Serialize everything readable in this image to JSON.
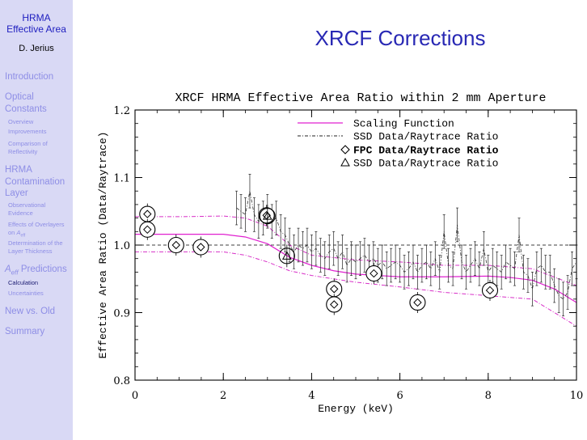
{
  "sidebar": {
    "title_line1": "HRMA",
    "title_line2": "Effective Area",
    "author": "D. Jerius",
    "sections": [
      {
        "label": "Introduction"
      },
      {
        "label": "Optical Constants",
        "subs": [
          "Overview",
          "Improvements",
          "Comparison of Reflectivity"
        ]
      },
      {
        "label": "HRMA Contamination Layer",
        "subs": [
          "Observational Evidence",
          "Effects of Overlayers on A_eff",
          "Determination of the Layer Thickness"
        ]
      },
      {
        "label": "A_eff Predictions",
        "subs": [
          "Calculation",
          "Uncertainties"
        ]
      },
      {
        "label": "New vs. Old"
      },
      {
        "label": "Summary"
      }
    ]
  },
  "slide": {
    "title": "XRCF Corrections"
  },
  "chart_data": {
    "type": "line",
    "title": "XRCF HRMA Effective Area Ratio within 2 mm Aperture",
    "xlabel": "Energy (keV)",
    "ylabel": "Effective Area Ratio (Data/Raytrace)",
    "xlim": [
      0,
      10
    ],
    "ylim": [
      0.8,
      1.2
    ],
    "xticks": [
      0,
      2,
      4,
      6,
      8,
      10
    ],
    "yticks": [
      0.8,
      0.9,
      1.0,
      1.1,
      1.2
    ],
    "xtick_labels": [
      "0",
      "2",
      "4",
      "6",
      "8",
      "10"
    ],
    "ytick_labels": [
      "0.8",
      "0.9",
      "1.0",
      "1.1",
      "1.2"
    ],
    "reference_line": 1.0,
    "legend": [
      {
        "label": "Scaling Function",
        "style": "magenta solid line"
      },
      {
        "label": "SSD Data/Raytrace Ratio",
        "style": "black dash-dot line"
      },
      {
        "label": "FPC Data/Raytrace Ratio",
        "style": "diamond"
      },
      {
        "label": "SSD Data/Raytrace Ratio",
        "style": "triangle"
      }
    ],
    "colors": {
      "scaling": "#e020d0",
      "envelope": "#d830c8",
      "ssd_line": "#303030",
      "axes": "#000000"
    },
    "scaling_function": {
      "x": [
        0,
        0.5,
        1.0,
        1.5,
        2.0,
        2.5,
        3.0,
        3.5,
        4.0,
        4.5,
        5.0,
        5.5,
        6.0,
        7.0,
        8.0,
        8.5,
        9.0,
        9.5,
        10.0
      ],
      "y": [
        1.016,
        1.016,
        1.016,
        1.016,
        1.016,
        1.012,
        1.002,
        0.982,
        0.97,
        0.962,
        0.957,
        0.955,
        0.953,
        0.953,
        0.954,
        0.952,
        0.948,
        0.935,
        0.915
      ]
    },
    "envelope_upper": {
      "x": [
        0,
        1.0,
        2.0,
        2.5,
        3.0,
        3.5,
        4.0,
        5.0,
        6.0,
        7.0,
        8.0,
        9.0,
        10.0
      ],
      "y": [
        1.042,
        1.042,
        1.043,
        1.04,
        1.028,
        1.0,
        0.985,
        0.978,
        0.975,
        0.97,
        0.97,
        0.965,
        0.94
      ]
    },
    "envelope_lower": {
      "x": [
        0,
        1.0,
        2.0,
        2.5,
        3.0,
        3.5,
        4.0,
        5.0,
        6.0,
        7.0,
        8.0,
        9.0,
        10.0
      ],
      "y": [
        0.99,
        0.99,
        0.99,
        0.985,
        0.975,
        0.962,
        0.955,
        0.945,
        0.938,
        0.93,
        0.925,
        0.92,
        0.88
      ]
    },
    "ssd_ratio_series": {
      "x": [
        2.3,
        2.4,
        2.5,
        2.6,
        2.7,
        2.8,
        2.9,
        3.0,
        3.1,
        3.2,
        3.3,
        3.4,
        3.5,
        3.6,
        3.7,
        3.8,
        3.9,
        4.0,
        4.1,
        4.2,
        4.3,
        4.4,
        4.5,
        4.6,
        4.7,
        4.8,
        4.9,
        5.0,
        5.1,
        5.2,
        5.3,
        5.4,
        5.5,
        5.6,
        5.7,
        5.8,
        5.9,
        6.0,
        6.1,
        6.2,
        6.3,
        6.4,
        6.5,
        6.6,
        6.7,
        6.8,
        6.9,
        7.0,
        7.1,
        7.2,
        7.3,
        7.4,
        7.5,
        7.6,
        7.7,
        7.8,
        7.9,
        8.0,
        8.1,
        8.2,
        8.3,
        8.4,
        8.5,
        8.6,
        8.7,
        8.8,
        8.9,
        9.0,
        9.1,
        9.2,
        9.3,
        9.4,
        9.5,
        9.6,
        9.7,
        9.8,
        9.9,
        10.0
      ],
      "y": [
        1.055,
        1.05,
        1.045,
        1.08,
        1.045,
        1.035,
        1.04,
        1.05,
        1.035,
        1.04,
        1.02,
        1.015,
        1.0,
        0.99,
        1.0,
        0.995,
        1.0,
        0.99,
        0.995,
        0.985,
        0.98,
        0.99,
        0.995,
        0.98,
        0.99,
        0.97,
        0.98,
        0.975,
        0.98,
        0.985,
        0.975,
        0.98,
        0.97,
        0.975,
        0.965,
        0.97,
        0.975,
        0.97,
        0.96,
        0.965,
        0.975,
        0.96,
        0.97,
        0.975,
        0.965,
        0.98,
        0.96,
        1.02,
        0.97,
        0.965,
        1.03,
        0.975,
        0.96,
        0.97,
        0.98,
        0.965,
        0.995,
        0.96,
        0.97,
        0.965,
        0.96,
        0.975,
        0.97,
        0.965,
        1.015,
        0.96,
        0.955,
        0.935,
        0.965,
        0.97,
        0.96,
        0.96,
        0.94,
        0.925,
        0.92,
        0.93,
        0.965,
        0.975
      ],
      "err": 0.025
    },
    "fpc_points": [
      {
        "x": 0.28,
        "y": 1.046
      },
      {
        "x": 0.28,
        "y": 1.023
      },
      {
        "x": 0.93,
        "y": 1.0
      },
      {
        "x": 1.49,
        "y": 0.997
      },
      {
        "x": 2.98,
        "y": 1.044
      },
      {
        "x": 4.51,
        "y": 0.935
      },
      {
        "x": 4.51,
        "y": 0.912
      },
      {
        "x": 5.41,
        "y": 0.958
      },
      {
        "x": 6.4,
        "y": 0.915
      },
      {
        "x": 8.04,
        "y": 0.933
      }
    ],
    "ssd_points": [
      {
        "x": 3.0,
        "y": 1.043
      },
      {
        "x": 3.44,
        "y": 0.984
      }
    ]
  }
}
